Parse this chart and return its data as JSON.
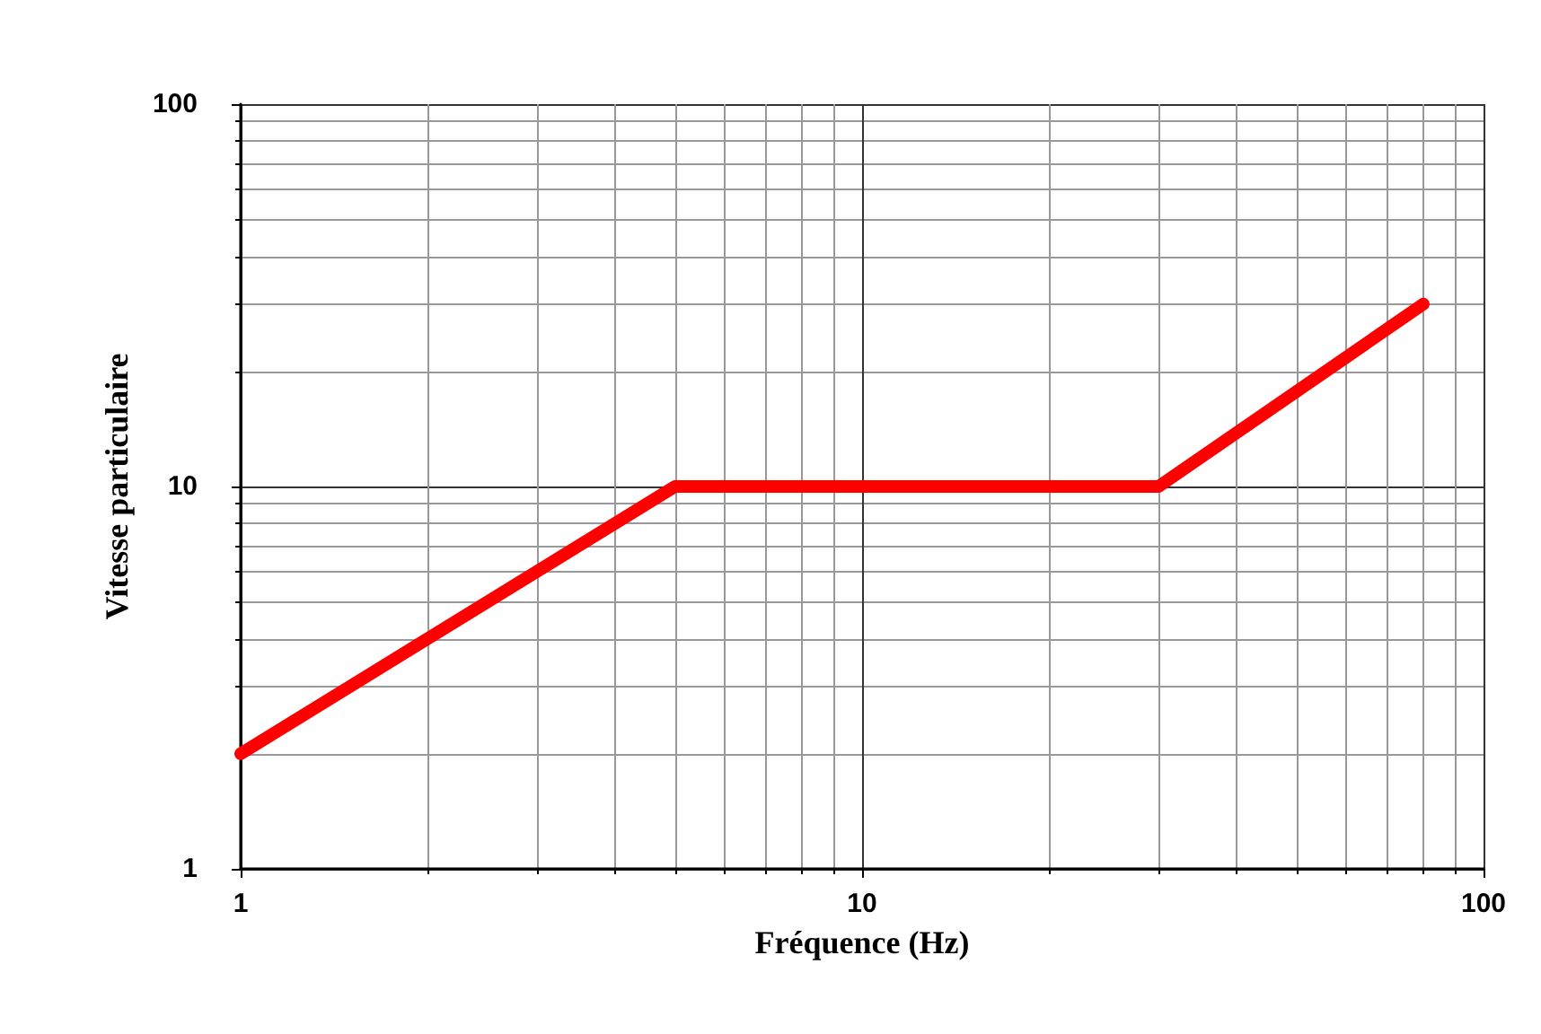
{
  "chart_data": {
    "type": "line",
    "xlabel": "Fréquence (Hz)",
    "ylabel": "Vitesse particulaire",
    "x": [
      1,
      5,
      30,
      80
    ],
    "series": [
      {
        "color": "#ff0000",
        "values": [
          2,
          10,
          10,
          30
        ]
      }
    ],
    "xlim": [
      1,
      100
    ],
    "ylim": [
      1,
      100
    ],
    "xticks": [
      1,
      10,
      100
    ],
    "yticks": [
      1,
      10,
      100
    ],
    "log": "xy",
    "grid": true,
    "line_style": "solid"
  }
}
